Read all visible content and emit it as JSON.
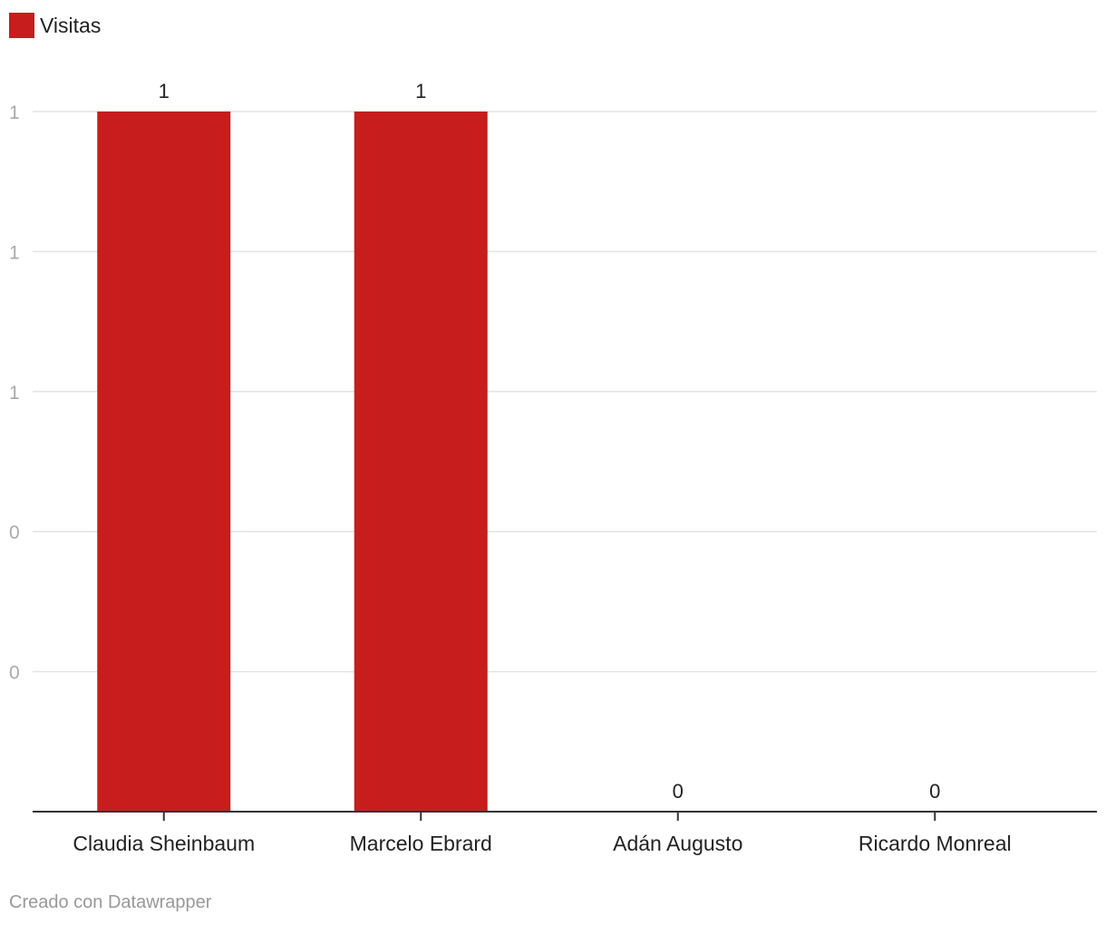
{
  "legend": {
    "label": "Visitas",
    "color": "#c71d1d"
  },
  "chart_data": {
    "type": "bar",
    "categories": [
      "Claudia Sheinbaum",
      "Marcelo Ebrard",
      "Adán Augusto",
      "Ricardo Monreal"
    ],
    "series": [
      {
        "name": "Visitas",
        "values": [
          1,
          1,
          0,
          0
        ],
        "color": "#c71d1d"
      }
    ],
    "data_labels": [
      "1",
      "1",
      "0",
      "0"
    ],
    "ylim": [
      0,
      1
    ],
    "y_ticks": [
      {
        "value": 1.0,
        "label": "1"
      },
      {
        "value": 0.8,
        "label": "1"
      },
      {
        "value": 0.6,
        "label": "1"
      },
      {
        "value": 0.4,
        "label": "0"
      },
      {
        "value": 0.2,
        "label": "0"
      }
    ],
    "grid": true
  },
  "colors": {
    "grid": "#e3e3e3",
    "axis": "#333333",
    "tick_label": "#aaaaaa",
    "text": "#222222"
  },
  "footer": {
    "credit": "Creado con Datawrapper"
  }
}
